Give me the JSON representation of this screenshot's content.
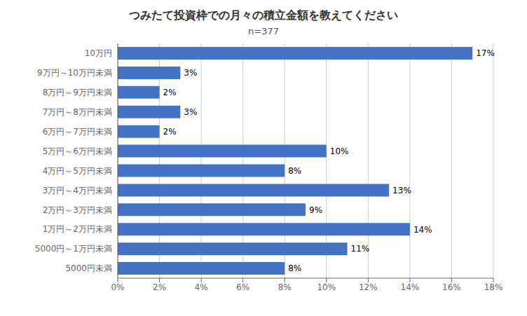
{
  "chart_data": {
    "type": "bar",
    "orientation": "horizontal",
    "title": "つみたて投資枠での月々の積立金額を教えてください",
    "subtitle": "n=377",
    "categories": [
      "10万円",
      "9万円～10万円未満",
      "8万円～9万円未満",
      "7万円～8万円未満",
      "6万円～7万円未満",
      "5万円～6万円未満",
      "4万円～5万円未満",
      "3万円～4万円未満",
      "2万円～3万円未満",
      "1万円～2万円未満",
      "5000円～1万円未満",
      "5000円未満"
    ],
    "values": [
      17,
      3,
      2,
      3,
      2,
      10,
      8,
      13,
      9,
      14,
      11,
      8
    ],
    "value_labels": [
      "17%",
      "3%",
      "2%",
      "3%",
      "2%",
      "10%",
      "8%",
      "13%",
      "9%",
      "14%",
      "11%",
      "8%"
    ],
    "data_labels": true,
    "color": "#4472C4",
    "xlim": [
      0,
      18
    ],
    "xticks": [
      {
        "value": 0,
        "label": "0%"
      },
      {
        "value": 2,
        "label": "2%"
      },
      {
        "value": 4,
        "label": "4%"
      },
      {
        "value": 6,
        "label": "6%"
      },
      {
        "value": 8,
        "label": "8%"
      },
      {
        "value": 10,
        "label": "10%"
      },
      {
        "value": 12,
        "label": "12%"
      },
      {
        "value": 14,
        "label": "14%"
      },
      {
        "value": 16,
        "label": "16%"
      },
      {
        "value": 18,
        "label": "18%"
      }
    ],
    "grid": true
  }
}
